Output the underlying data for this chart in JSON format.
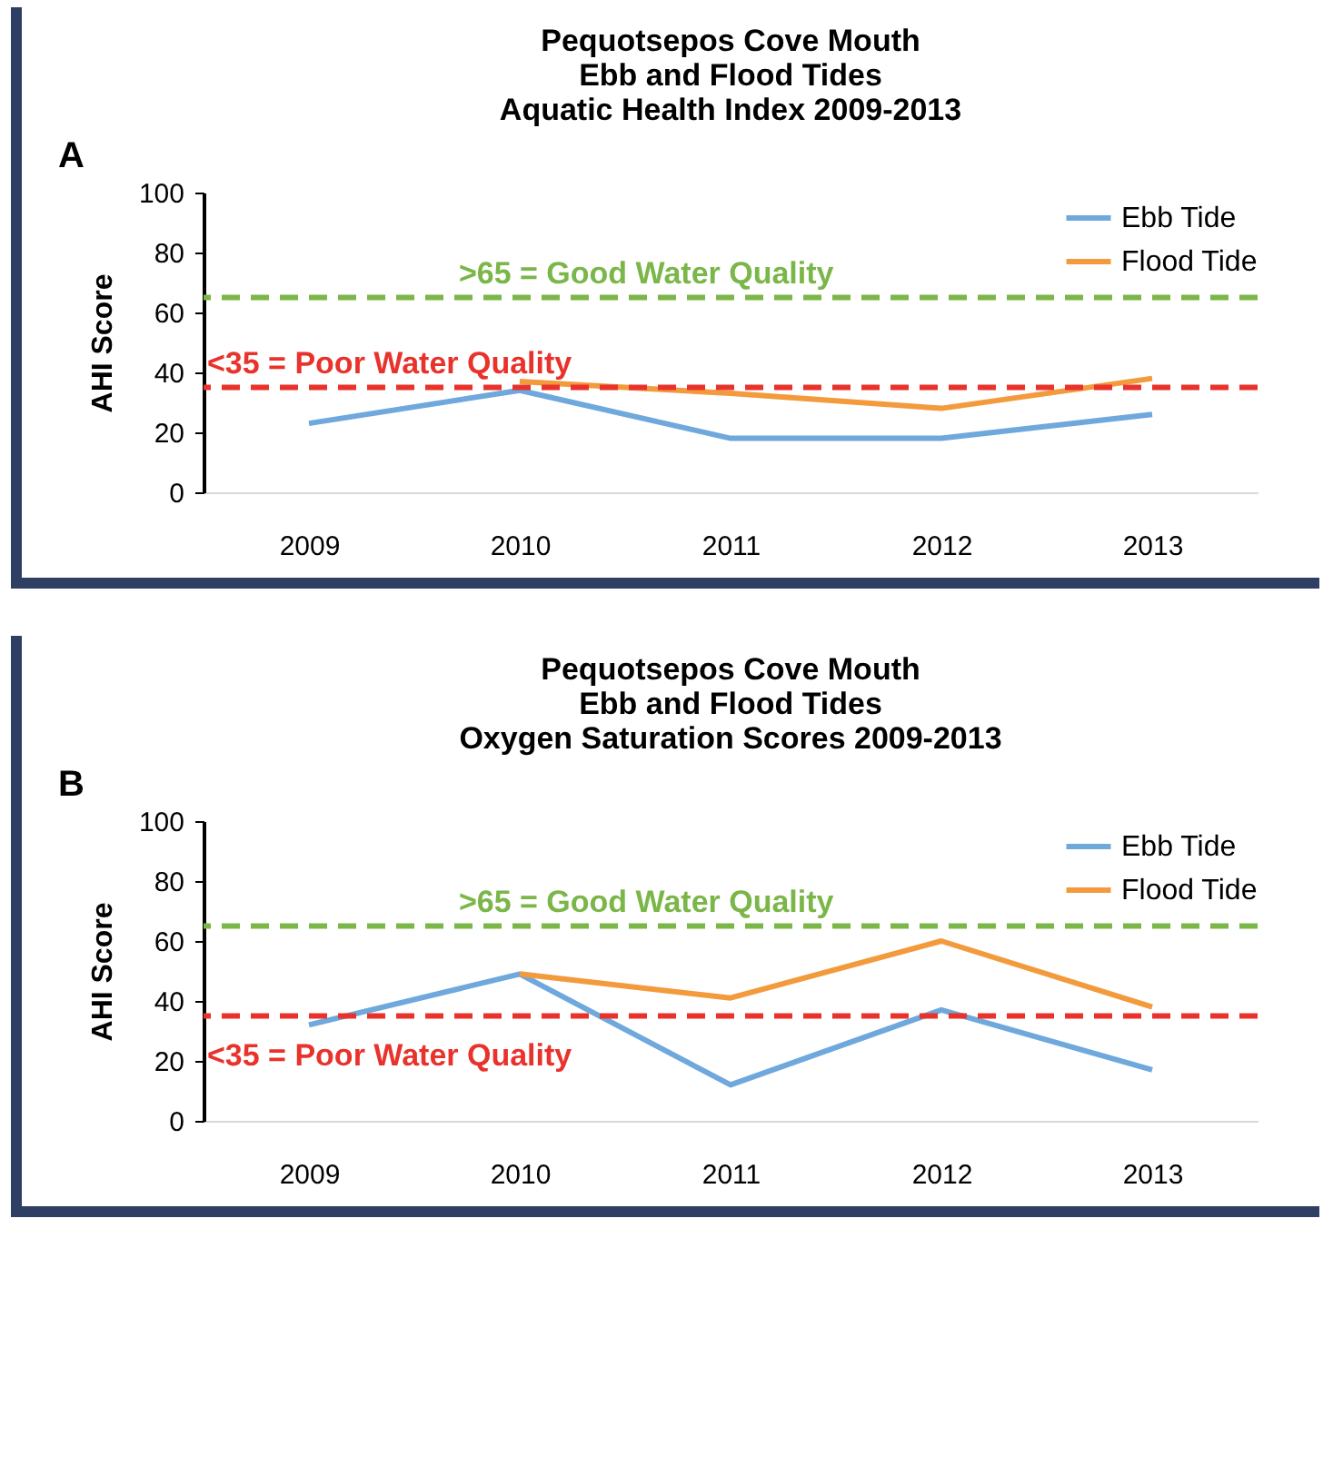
{
  "chart_data": [
    {
      "type": "line",
      "title": "Pequotsepos Cove Mouth\nEbb and Flood Tides\nAquatic Health Index 2009-2013",
      "ylabel": "AHI Score",
      "annotations": [
        "A"
      ],
      "categories": [
        "2009",
        "2010",
        "2011",
        "2012",
        "2013"
      ],
      "ylim": [
        0,
        100
      ],
      "yticks": [
        0,
        20,
        40,
        60,
        80,
        100
      ],
      "legend": "top right",
      "grid": false,
      "marker": "none",
      "line_style": "solid",
      "series": [
        {
          "name": "Ebb Tide",
          "color": "#6fa8dc",
          "values": [
            23,
            34,
            18,
            18,
            26
          ]
        },
        {
          "name": "Flood Tide",
          "color": "#f39a3c",
          "values": [
            null,
            37,
            33,
            28,
            38
          ]
        }
      ],
      "ref_lines": [
        {
          "axis": "y",
          "value": 65,
          "label": ">65 = Good Water Quality",
          "color": "#7ab648",
          "line_style": "dashed"
        },
        {
          "axis": "y",
          "value": 35,
          "label": "<35 = Poor Water Quality",
          "color": "#e8322b",
          "line_style": "dashed"
        }
      ]
    },
    {
      "type": "line",
      "title": "Pequotsepos Cove Mouth\nEbb and Flood Tides\nOxygen Saturation Scores 2009-2013",
      "ylabel": "AHI Score",
      "annotations": [
        "B"
      ],
      "categories": [
        "2009",
        "2010",
        "2011",
        "2012",
        "2013"
      ],
      "ylim": [
        0,
        100
      ],
      "yticks": [
        0,
        20,
        40,
        60,
        80,
        100
      ],
      "legend": "top right",
      "grid": false,
      "marker": "none",
      "line_style": "solid",
      "series": [
        {
          "name": "Ebb Tide",
          "color": "#6fa8dc",
          "values": [
            32,
            49,
            12,
            37,
            17
          ]
        },
        {
          "name": "Flood Tide",
          "color": "#f39a3c",
          "values": [
            null,
            49,
            41,
            60,
            38
          ]
        }
      ],
      "ref_lines": [
        {
          "axis": "y",
          "value": 65,
          "label": ">65 = Good Water Quality",
          "color": "#7ab648",
          "line_style": "dashed"
        },
        {
          "axis": "y",
          "value": 35,
          "label": "<35 = Poor Water Quality",
          "color": "#e8322b",
          "line_style": "dashed"
        }
      ]
    }
  ]
}
